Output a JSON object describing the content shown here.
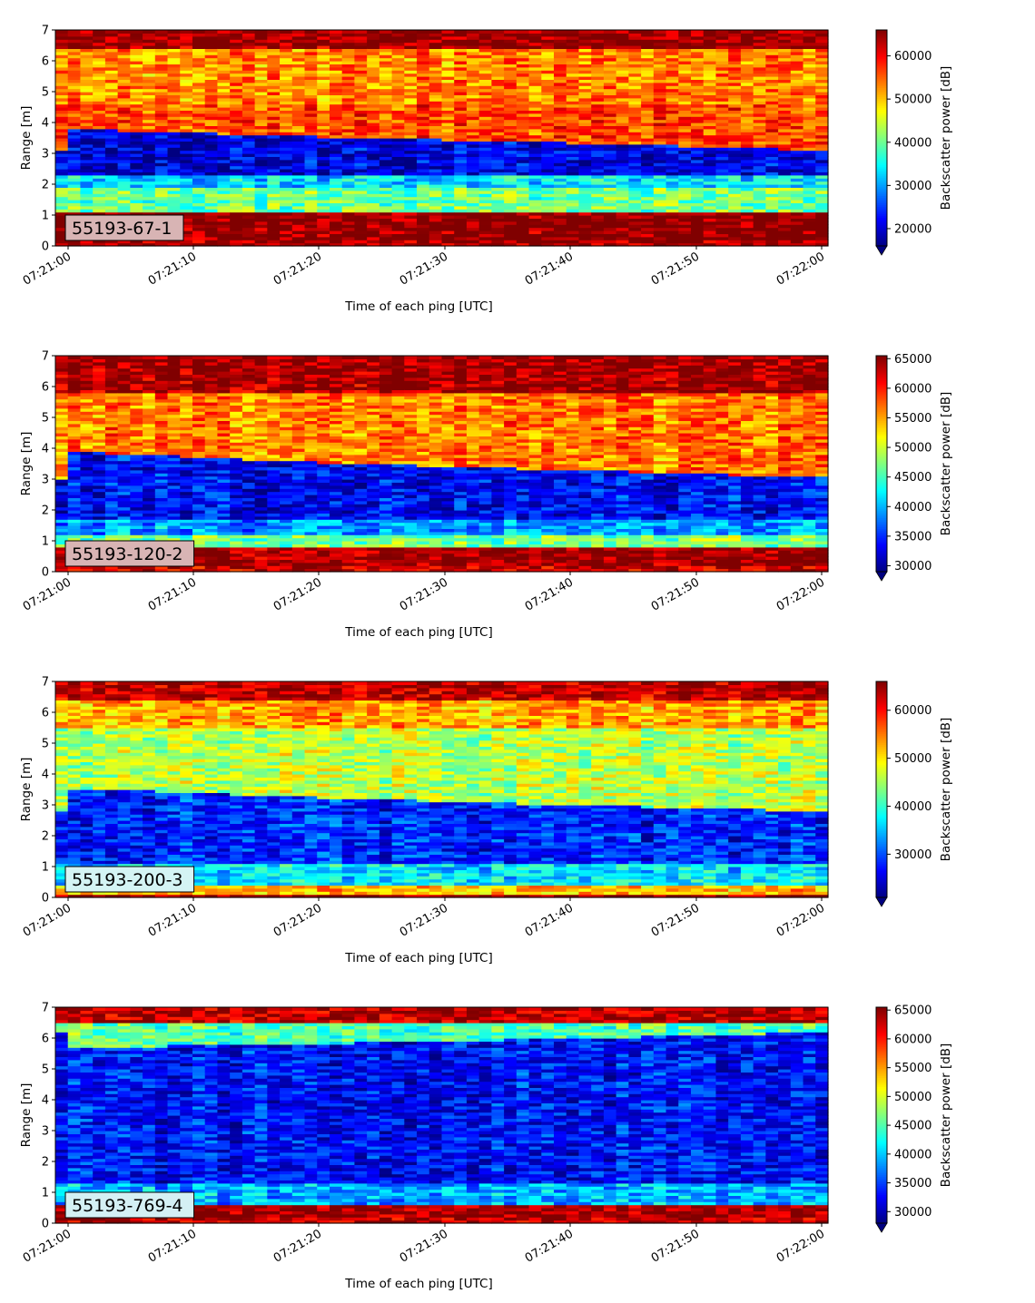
{
  "chart_data": [
    {
      "type": "heatmap",
      "label": "55193-67-1",
      "label_color": "#d8b4b4",
      "xlabel": "Time of each ping [UTC]",
      "ylabel": "Range [m]",
      "colorbar_label": "Backscatter power [dB]",
      "colormap": "jet",
      "ylim": [
        0,
        7
      ],
      "yticks": [
        0,
        1,
        2,
        3,
        4,
        5,
        6,
        7
      ],
      "xticks": [
        "07:21:00",
        "07:21:10",
        "07:21:20",
        "07:21:30",
        "07:21:40",
        "07:21:50",
        "07:22:00"
      ],
      "clim": [
        16000,
        66000
      ],
      "cbar_ticks": [
        20000,
        30000,
        40000,
        50000,
        60000
      ],
      "profile": {
        "water_top": [
          {
            "t": 0,
            "r": 3.8
          },
          {
            "t": 20,
            "r": 3.55
          },
          {
            "t": 40,
            "r": 3.35
          },
          {
            "t": 60,
            "r": 3.1
          }
        ],
        "layers": [
          {
            "from": 0,
            "to": 0.25,
            "value": 64000
          },
          {
            "from": 0.25,
            "to": 1.1,
            "value": 66000
          },
          {
            "from": 1.1,
            "to": 1.9,
            "value": 40000
          },
          {
            "from": 1.9,
            "to": 2.3,
            "value": 33000
          },
          {
            "from": 2.3,
            "to": "water_top",
            "value": 20500
          },
          {
            "from": "water_top",
            "to": 4.6,
            "value": 56000
          },
          {
            "from": 4.6,
            "to": 6.4,
            "value": 53000
          },
          {
            "from": 6.4,
            "to": 7,
            "value": 65000
          }
        ]
      }
    },
    {
      "type": "heatmap",
      "label": "55193-120-2",
      "label_color": "#d8b4b4",
      "xlabel": "Time of each ping [UTC]",
      "ylabel": "Range [m]",
      "colorbar_label": "Backscatter power [dB]",
      "colormap": "jet",
      "ylim": [
        0,
        7
      ],
      "yticks": [
        0,
        1,
        2,
        3,
        4,
        5,
        6,
        7
      ],
      "xticks": [
        "07:21:00",
        "07:21:10",
        "07:21:20",
        "07:21:30",
        "07:21:40",
        "07:21:50",
        "07:22:00"
      ],
      "clim": [
        29000,
        65500
      ],
      "cbar_ticks": [
        30000,
        35000,
        40000,
        45000,
        50000,
        55000,
        60000,
        65000
      ],
      "profile": {
        "water_top": [
          {
            "t": 0,
            "r": 3.9
          },
          {
            "t": 20,
            "r": 3.55
          },
          {
            "t": 40,
            "r": 3.3
          },
          {
            "t": 60,
            "r": 3.05
          }
        ],
        "layers": [
          {
            "from": 0,
            "to": 0.2,
            "value": 62000
          },
          {
            "from": 0.2,
            "to": 0.85,
            "value": 65000
          },
          {
            "from": 0.85,
            "to": 1.2,
            "value": 47000
          },
          {
            "from": 1.2,
            "to": 1.7,
            "value": 39000
          },
          {
            "from": 1.7,
            "to": "water_top",
            "value": 33500
          },
          {
            "from": "water_top",
            "to": 5.8,
            "value": 56500
          },
          {
            "from": 5.8,
            "to": 7,
            "value": 64500
          }
        ]
      }
    },
    {
      "type": "heatmap",
      "label": "55193-200-3",
      "label_color": "#d4f4f4",
      "xlabel": "Time of each ping [UTC]",
      "ylabel": "Range [m]",
      "colorbar_label": "Backscatter power [dB]",
      "colormap": "jet",
      "ylim": [
        0,
        7
      ],
      "yticks": [
        0,
        1,
        2,
        3,
        4,
        5,
        6,
        7
      ],
      "xticks": [
        "07:21:00",
        "07:21:10",
        "07:21:20",
        "07:21:30",
        "07:21:40",
        "07:21:50",
        "07:22:00"
      ],
      "clim": [
        21000,
        66000
      ],
      "cbar_ticks": [
        30000,
        40000,
        50000,
        60000
      ],
      "profile": {
        "water_top": [
          {
            "t": 0,
            "r": 3.55
          },
          {
            "t": 20,
            "r": 3.25
          },
          {
            "t": 40,
            "r": 3.0
          },
          {
            "t": 60,
            "r": 2.8
          }
        ],
        "layers": [
          {
            "from": 0,
            "to": 0.15,
            "value": 65000
          },
          {
            "from": 0.15,
            "to": 0.4,
            "value": 52000
          },
          {
            "from": 0.4,
            "to": 1.1,
            "value": 37000
          },
          {
            "from": 1.1,
            "to": "water_top",
            "value": 28000
          },
          {
            "from": "water_top",
            "to": 5.5,
            "value": 46000
          },
          {
            "from": 5.5,
            "to": 6.4,
            "value": 53000
          },
          {
            "from": 6.4,
            "to": 7,
            "value": 63000
          }
        ]
      }
    },
    {
      "type": "heatmap",
      "label": "55193-769-4",
      "label_color": "#d4f0f4",
      "xlabel": "Time of each ping [UTC]",
      "ylabel": "Range [m]",
      "colorbar_label": "Backscatter power [dB]",
      "colormap": "jet",
      "ylim": [
        0,
        7
      ],
      "yticks": [
        0,
        1,
        2,
        3,
        4,
        5,
        6,
        7
      ],
      "xticks": [
        "07:21:00",
        "07:21:10",
        "07:21:20",
        "07:21:30",
        "07:21:40",
        "07:21:50",
        "07:22:00"
      ],
      "clim": [
        28000,
        65500
      ],
      "cbar_ticks": [
        30000,
        35000,
        40000,
        45000,
        50000,
        55000,
        60000,
        65000
      ],
      "profile": {
        "water_top": [
          {
            "t": 0,
            "r": 5.7
          },
          {
            "t": 30,
            "r": 5.9
          },
          {
            "t": 60,
            "r": 6.2
          }
        ],
        "layers": [
          {
            "from": 0,
            "to": 0.2,
            "value": 63000
          },
          {
            "from": 0.2,
            "to": 0.65,
            "value": 65000
          },
          {
            "from": 0.65,
            "to": 1.3,
            "value": 39000
          },
          {
            "from": 1.3,
            "to": "water_top",
            "value": 33000
          },
          {
            "from": "water_top",
            "to": 6.5,
            "value": 45000
          },
          {
            "from": 6.5,
            "to": 7,
            "value": 63000
          }
        ]
      }
    }
  ]
}
